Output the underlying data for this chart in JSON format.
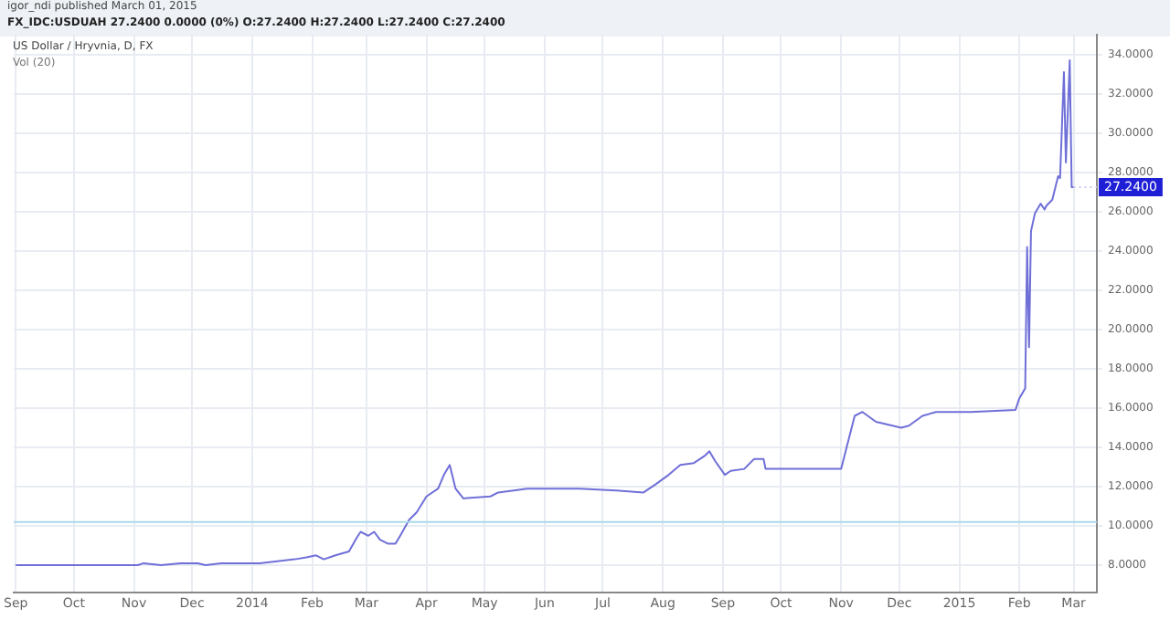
{
  "chart_data": {
    "type": "line",
    "title": "FX_IDC:USDUAH 27.2400 0.0000 (0%) O:27.2400 H:27.2400 L:27.2400 C:27.2400",
    "subtitle": "US Dollar / Hryvnia, D, FX",
    "annotations": [
      "igor_ndi published March 01, 2015",
      "Vol (20)",
      {
        "text": "27.2400",
        "x": "2015-03-01",
        "y": 27.24
      }
    ],
    "series": [
      {
        "color": "#6f6fd8",
        "x": [
          "2013-09-01",
          "2013-11-03",
          "2013-11-06",
          "2013-11-15",
          "2013-11-25",
          "2013-12-04",
          "2013-12-08",
          "2013-12-16",
          "2013-12-22",
          "2013-12-27",
          "2014-01-05",
          "2014-01-14",
          "2014-01-23",
          "2014-01-29",
          "2014-02-03",
          "2014-02-07",
          "2014-02-13",
          "2014-02-20",
          "2014-02-24",
          "2014-02-26",
          "2014-03-02",
          "2014-03-05",
          "2014-03-08",
          "2014-03-12",
          "2014-03-16",
          "2014-03-19",
          "2014-03-23",
          "2014-03-27",
          "2014-04-01",
          "2014-04-07",
          "2014-04-10",
          "2014-04-13",
          "2014-04-16",
          "2014-04-20",
          "2014-05-04",
          "2014-05-08",
          "2014-05-23",
          "2014-06-01",
          "2014-06-19",
          "2014-07-08",
          "2014-07-22",
          "2014-07-28",
          "2014-08-04",
          "2014-08-10",
          "2014-08-17",
          "2014-08-23",
          "2014-08-25",
          "2014-08-28",
          "2014-09-02",
          "2014-09-05",
          "2014-09-12",
          "2014-09-17",
          "2014-09-22",
          "2014-09-23",
          "2014-11-01",
          "2014-11-08",
          "2014-11-12",
          "2014-11-19",
          "2014-12-02",
          "2014-12-06",
          "2014-12-13",
          "2014-12-20",
          "2015-01-07",
          "2015-01-30",
          "2015-02-01",
          "2015-02-04",
          "2015-02-05",
          "2015-02-06",
          "2015-02-07",
          "2015-02-09",
          "2015-02-12",
          "2015-02-14",
          "2015-02-15",
          "2015-02-18",
          "2015-02-21",
          "2015-02-22",
          "2015-02-24",
          "2015-02-25",
          "2015-02-27",
          "2015-02-28",
          "2015-03-01"
        ],
        "values": [
          8.0,
          8.0,
          8.1,
          8.0,
          8.1,
          8.1,
          8.0,
          8.1,
          8.1,
          8.1,
          8.1,
          8.2,
          8.3,
          8.4,
          8.5,
          8.3,
          8.5,
          8.7,
          9.4,
          9.7,
          9.5,
          9.7,
          9.3,
          9.1,
          9.1,
          9.6,
          10.3,
          10.7,
          11.5,
          11.9,
          12.6,
          13.1,
          11.9,
          11.4,
          11.5,
          11.7,
          11.9,
          11.9,
          11.9,
          11.8,
          11.7,
          12.1,
          12.6,
          13.1,
          13.2,
          13.6,
          13.8,
          13.3,
          12.6,
          12.8,
          12.9,
          13.4,
          13.4,
          12.9,
          12.9,
          15.6,
          15.8,
          15.3,
          15.0,
          15.1,
          15.6,
          15.8,
          15.8,
          15.9,
          16.5,
          17.0,
          24.2,
          19.1,
          25.0,
          25.9,
          26.4,
          26.1,
          26.3,
          26.6,
          27.8,
          27.7,
          33.1,
          28.5,
          33.7,
          27.24,
          27.24
        ]
      }
    ],
    "xlim": [
      "2013-08-31",
      "2015-03-13"
    ],
    "xticks": [
      {
        "value": "2013-09-01",
        "label": "Sep"
      },
      {
        "value": "2013-10-01",
        "label": "Oct"
      },
      {
        "value": "2013-11-01",
        "label": "Nov"
      },
      {
        "value": "2013-12-01",
        "label": "Dec"
      },
      {
        "value": "2014-01-01",
        "label": "2014"
      },
      {
        "value": "2014-02-01",
        "label": "Feb"
      },
      {
        "value": "2014-03-01",
        "label": "Mar"
      },
      {
        "value": "2014-04-01",
        "label": "Apr"
      },
      {
        "value": "2014-05-01",
        "label": "May"
      },
      {
        "value": "2014-06-01",
        "label": "Jun"
      },
      {
        "value": "2014-07-01",
        "label": "Jul"
      },
      {
        "value": "2014-08-01",
        "label": "Aug"
      },
      {
        "value": "2014-09-01",
        "label": "Sep"
      },
      {
        "value": "2014-10-01",
        "label": "Oct"
      },
      {
        "value": "2014-11-01",
        "label": "Nov"
      },
      {
        "value": "2014-12-01",
        "label": "Dec"
      },
      {
        "value": "2015-01-01",
        "label": "2015"
      },
      {
        "value": "2015-02-01",
        "label": "Feb"
      },
      {
        "value": "2015-03-01",
        "label": "Mar"
      }
    ],
    "ylim": [
      6.6,
      35
    ],
    "yticks": [
      {
        "value": 8,
        "label": "8.0000"
      },
      {
        "value": 10,
        "label": "10.0000"
      },
      {
        "value": 12,
        "label": "12.0000"
      },
      {
        "value": 14,
        "label": "14.0000"
      },
      {
        "value": 16,
        "label": "16.0000"
      },
      {
        "value": 18,
        "label": "18.0000"
      },
      {
        "value": 20,
        "label": "20.0000"
      },
      {
        "value": 22,
        "label": "22.0000"
      },
      {
        "value": 24,
        "label": "24.0000"
      },
      {
        "value": 26,
        "label": "26.0000"
      },
      {
        "value": 28,
        "label": "28.0000"
      },
      {
        "value": 30,
        "label": "30.0000"
      },
      {
        "value": 32,
        "label": "32.0000"
      },
      {
        "value": 34,
        "label": "34.0000"
      }
    ],
    "ref_lines": [
      {
        "axis": "y",
        "value": 10.2,
        "color": "#a8d8ea"
      }
    ],
    "grid": true,
    "marker": "none"
  }
}
